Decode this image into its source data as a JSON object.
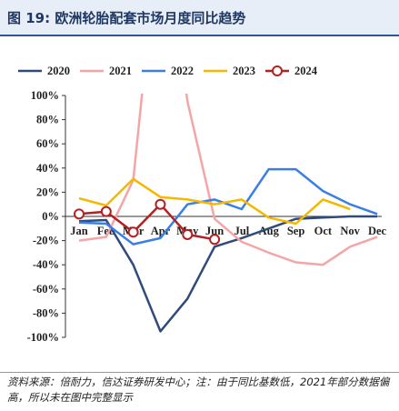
{
  "figure": {
    "title": "图 19:  欧洲轮胎配套市场月度同比趋势",
    "footnote": "资料来源：倍耐力，信达证券研发中心；注：由于同比基数低，2021年部分数据偏高，所以未在图中完整显示"
  },
  "chart_data": {
    "type": "line",
    "categories": [
      "Jan",
      "Feb",
      "Mar",
      "Apr",
      "May",
      "Jun",
      "Jul",
      "Aug",
      "Sep",
      "Oct",
      "Nov",
      "Dec"
    ],
    "ylim": [
      -100,
      100
    ],
    "yticks": [
      "100%",
      "80%",
      "60%",
      "40%",
      "20%",
      "0%",
      "-20%",
      "-40%",
      "-60%",
      "-80%",
      "-100%"
    ],
    "grid": false,
    "legend_position": "top",
    "series": [
      {
        "name": "2020",
        "color": "#2f4b7c",
        "values": [
          -4,
          -3,
          -40,
          -95,
          -68,
          -25,
          -18,
          -10,
          -2,
          -1,
          0,
          0
        ]
      },
      {
        "name": "2021",
        "color": "#f4a6a6",
        "values": [
          -20,
          -17,
          30,
          250,
          95,
          -2,
          -21,
          -30,
          -38,
          -40,
          -25,
          -17
        ]
      },
      {
        "name": "2022",
        "color": "#3a7ee6",
        "values": [
          -5,
          -6,
          -23,
          -18,
          10,
          14,
          6,
          39,
          39,
          21,
          10,
          2
        ]
      },
      {
        "name": "2023",
        "color": "#f5b800",
        "values": [
          15,
          9,
          31,
          16,
          14,
          10,
          14,
          -1,
          -6,
          14,
          6,
          null
        ]
      },
      {
        "name": "2024",
        "color": "#b22222",
        "marker": "circle",
        "values": [
          2,
          4,
          -13,
          10,
          -15,
          -19,
          null,
          null,
          null,
          null,
          null,
          null
        ]
      }
    ]
  }
}
